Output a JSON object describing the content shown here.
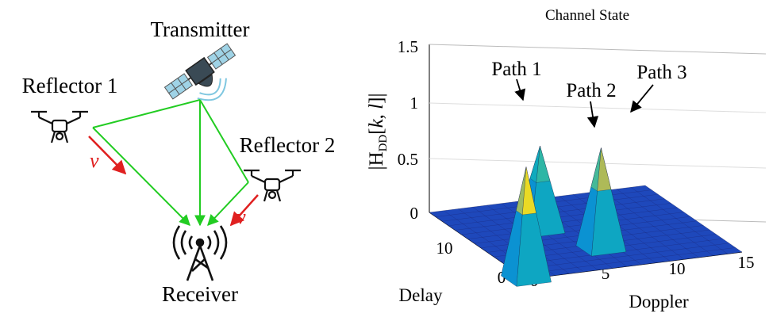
{
  "diagram": {
    "transmitter_label": "Transmitter",
    "reflector1_label": "Reflector 1",
    "reflector2_label": "Reflector 2",
    "receiver_label": "Receiver",
    "doppler_symbol_1": "ν",
    "doppler_symbol_2": "ν",
    "colors": {
      "signal_path": "#22cc22",
      "doppler_arrow": "#e02020",
      "icon": "#111111"
    },
    "icons": [
      "satellite-icon",
      "drone-icon",
      "drone-icon",
      "antenna-tower-icon"
    ]
  },
  "chart_data": {
    "type": "surface",
    "title": "Channel State",
    "zlabel_html": "|H<tspan font-size='15' dy='5'>DD</tspan><tspan dy='-5'>[</tspan><tspan font-style='italic'>k</tspan>, <tspan font-style='italic'>l</tspan>]|",
    "zlabel_text": "|H_DD[k, l]|",
    "xlabel": "Doppler",
    "ylabel": "Delay",
    "x_ticks": [
      "0",
      "5",
      "10",
      "15"
    ],
    "y_ticks": [
      "0",
      "10"
    ],
    "z_ticks": [
      "0",
      "0.5",
      "1",
      "1.5"
    ],
    "xlim": [
      0,
      15
    ],
    "ylim": [
      0,
      15
    ],
    "zlim": [
      0,
      1.5
    ],
    "colormap": "parula",
    "peaks": [
      {
        "label": "Path 1",
        "doppler": 0,
        "delay": 0,
        "value": 1.0
      },
      {
        "label": "Path 2",
        "doppler": 5,
        "delay": 9,
        "value": 0.75
      },
      {
        "label": "Path 3",
        "doppler": 7,
        "delay": 4,
        "value": 0.9
      }
    ]
  }
}
